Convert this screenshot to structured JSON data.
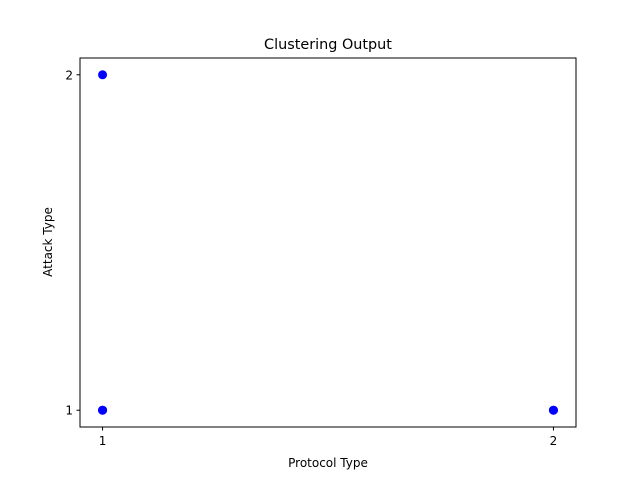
{
  "chart_data": {
    "type": "scatter",
    "title": "Clustering Output",
    "xlabel": "Protocol Type",
    "ylabel": "Attack Type",
    "xlim": [
      0.95,
      2.05
    ],
    "ylim": [
      0.95,
      2.05
    ],
    "xticks": [
      1,
      2
    ],
    "yticks": [
      1,
      2
    ],
    "grid": false,
    "marker_color": "#0000ff",
    "series": [
      {
        "points": [
          {
            "x": 1,
            "y": 2
          },
          {
            "x": 1,
            "y": 1
          },
          {
            "x": 1,
            "y": 1
          },
          {
            "x": 2,
            "y": 1
          },
          {
            "x": 2,
            "y": 1
          }
        ]
      }
    ]
  }
}
